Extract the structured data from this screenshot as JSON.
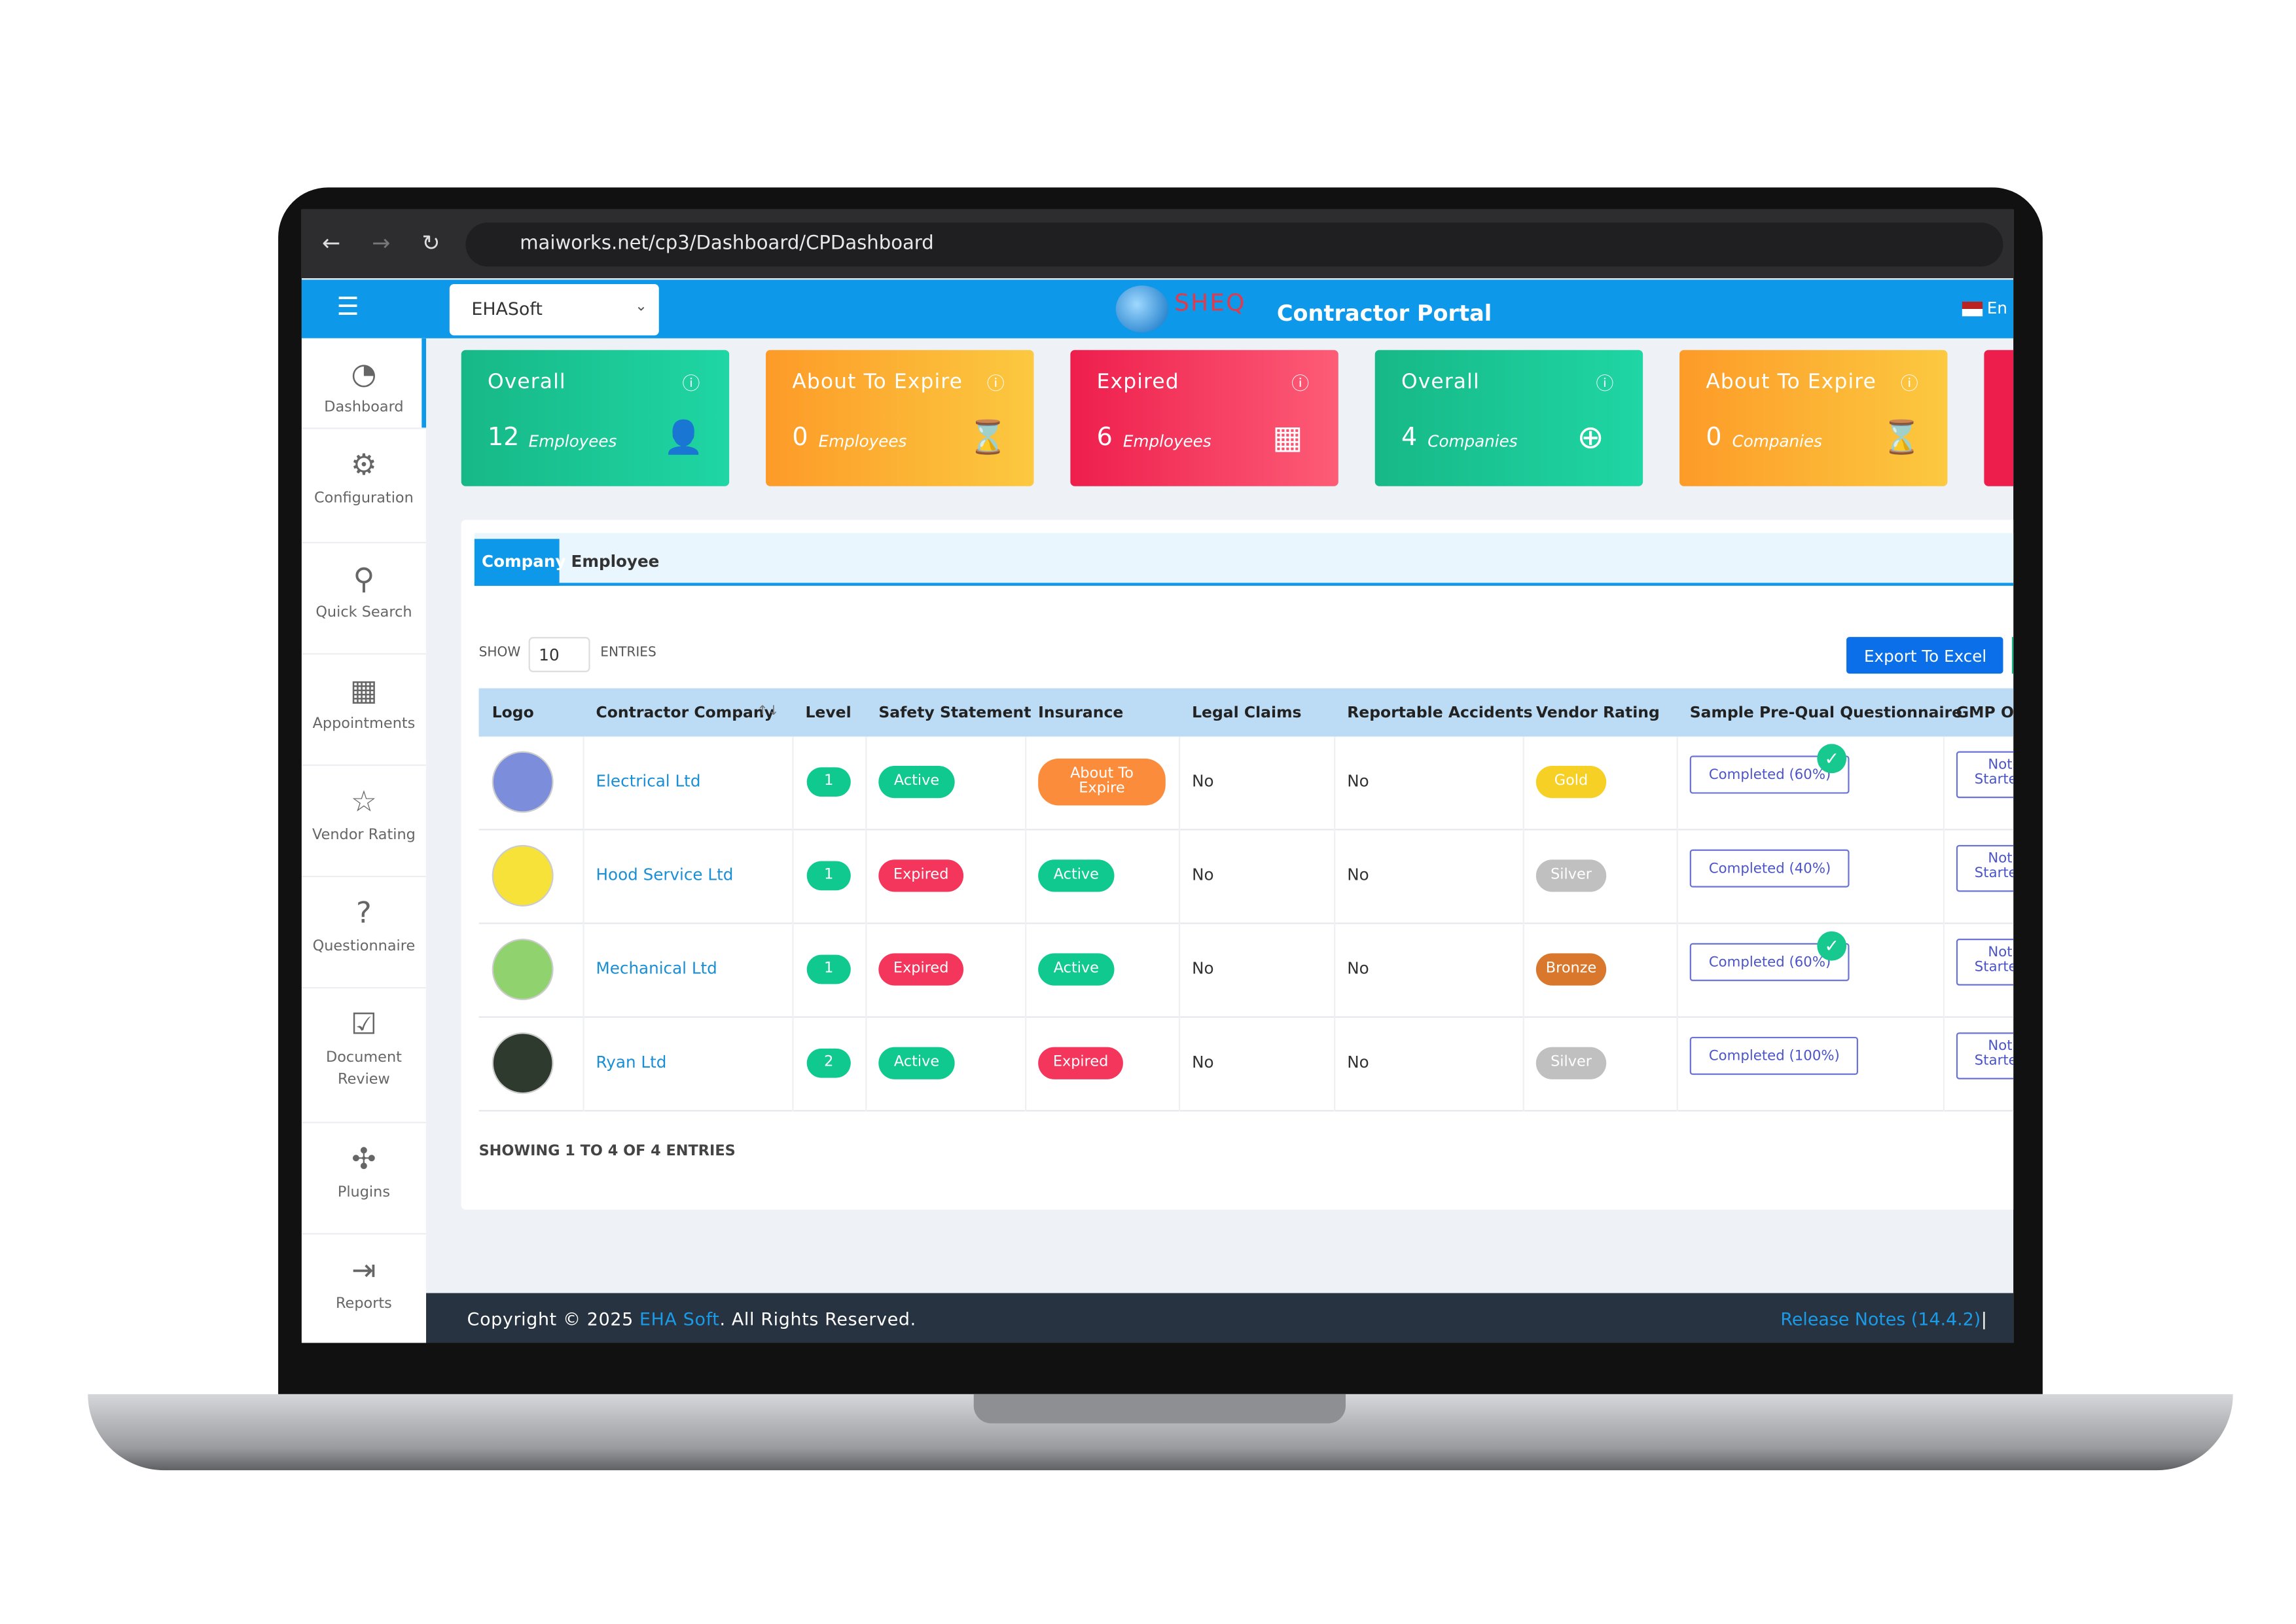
{
  "browser": {
    "url": "maiworks.net/cp3/Dashboard/CPDashboard"
  },
  "header": {
    "company_select": "EHASoft",
    "logo_text": "SHEQ",
    "title": "Contractor Portal",
    "language": "En"
  },
  "sidebar": {
    "items": [
      "Dashboard",
      "Configuration",
      "Quick Search",
      "Appointments",
      "Vendor Rating",
      "Questionnaire",
      "Document Review",
      "Plugins",
      "Reports"
    ]
  },
  "cards": [
    {
      "title": "Overall",
      "value": 12,
      "unit": "Employees"
    },
    {
      "title": "About To Expire",
      "value": 0,
      "unit": "Employees"
    },
    {
      "title": "Expired",
      "value": 6,
      "unit": "Employees"
    },
    {
      "title": "Overall",
      "value": 4,
      "unit": "Companies"
    },
    {
      "title": "About To Expire",
      "value": 0,
      "unit": "Companies"
    }
  ],
  "tabs": [
    "Company",
    "Employee"
  ],
  "controls": {
    "show": "SHOW",
    "page_size": 10,
    "entries": "ENTRIES",
    "export": "Export To Excel"
  },
  "table": {
    "columns": [
      "Logo",
      "Contractor Company",
      "Level",
      "Safety Statement",
      "Insurance",
      "Legal Claims",
      "Reportable Accidents",
      "Vendor Rating",
      "Sample Pre-Qual Questionnaire",
      "GMP OK"
    ],
    "rows": [
      [
        "",
        "Electrical Ltd",
        1,
        "Active",
        "About To Expire",
        "No",
        "No",
        "Gold",
        "Completed (60%)",
        "Not Started"
      ],
      [
        "",
        "Hood Service Ltd",
        1,
        "Expired",
        "Active",
        "No",
        "No",
        "Silver",
        "Completed (40%)",
        "Not Started"
      ],
      [
        "",
        "Mechanical Ltd",
        1,
        "Expired",
        "Active",
        "No",
        "No",
        "Bronze",
        "Completed (60%)",
        "Not Started"
      ],
      [
        "",
        "Ryan Ltd",
        2,
        "Active",
        "Expired",
        "No",
        "No",
        "Silver",
        "Completed (100%)",
        "Not Started"
      ]
    ]
  },
  "summary": "SHOWING 1 TO 4 OF 4 ENTRIES",
  "footer": {
    "copyright": "Copyright © 2025 ",
    "company": "EHA Soft",
    "rights": ". All Rights Reserved.",
    "release": "Release Notes (14.4.2)",
    "separator": "|"
  }
}
